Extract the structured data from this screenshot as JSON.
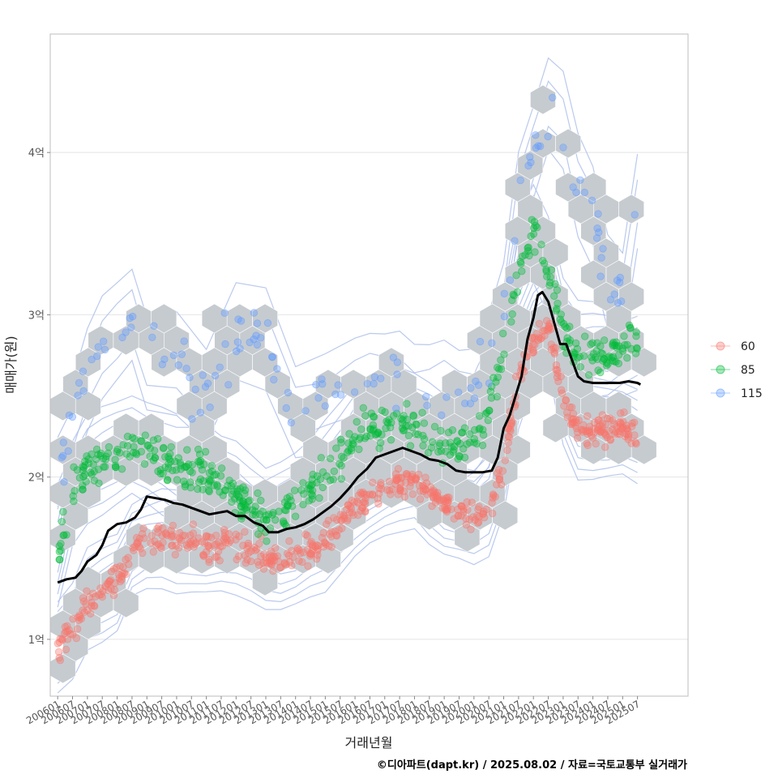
{
  "chart_data": {
    "type": "scatter",
    "xlabel": "거래년월",
    "ylabel": "매매가(원)",
    "caption": "©디아파트(dapt.kr) / 2025.08.02 / 자료=국토교통부 실거래가",
    "x_ticks": [
      "200601",
      "200607",
      "200701",
      "200707",
      "200801",
      "200807",
      "200901",
      "200907",
      "201001",
      "201007",
      "201101",
      "201107",
      "201201",
      "201207",
      "201301",
      "201307",
      "201401",
      "201407",
      "201501",
      "201507",
      "201601",
      "201607",
      "201701",
      "201707",
      "201801",
      "201807",
      "201901",
      "201907",
      "202001",
      "202007",
      "202101",
      "202107",
      "202201",
      "202207",
      "202301",
      "202307",
      "202401",
      "202407",
      "202501",
      "202507"
    ],
    "y_ticks": [
      {
        "value": 1.0,
        "label": "1억"
      },
      {
        "value": 2.0,
        "label": "2억"
      },
      {
        "value": 3.0,
        "label": "3억"
      },
      {
        "value": 4.0,
        "label": "4억"
      }
    ],
    "ylim": [
      0.65,
      4.73
    ],
    "xlim": [
      2005.75,
      2027.2
    ],
    "grid": true,
    "legend_position": "right",
    "series": [
      {
        "name": "60",
        "color": "#F8766D"
      },
      {
        "name": "85",
        "color": "#00BA38"
      },
      {
        "name": "115",
        "color": "#619CFF"
      }
    ],
    "series_centers": [
      {
        "name": "60",
        "points": [
          [
            2006.0,
            0.95
          ],
          [
            2006.5,
            1.05
          ],
          [
            2007.0,
            1.25
          ],
          [
            2007.5,
            1.3
          ],
          [
            2008.0,
            1.35
          ],
          [
            2008.5,
            1.55
          ],
          [
            2009.0,
            1.6
          ],
          [
            2009.5,
            1.62
          ],
          [
            2010.0,
            1.6
          ],
          [
            2010.5,
            1.6
          ],
          [
            2011.0,
            1.58
          ],
          [
            2011.5,
            1.58
          ],
          [
            2012.0,
            1.57
          ],
          [
            2012.5,
            1.55
          ],
          [
            2013.0,
            1.5
          ],
          [
            2013.5,
            1.48
          ],
          [
            2014.0,
            1.5
          ],
          [
            2014.5,
            1.55
          ],
          [
            2015.0,
            1.6
          ],
          [
            2015.5,
            1.72
          ],
          [
            2016.0,
            1.82
          ],
          [
            2016.5,
            1.88
          ],
          [
            2017.0,
            1.92
          ],
          [
            2017.5,
            1.96
          ],
          [
            2018.0,
            2.0
          ],
          [
            2018.5,
            1.9
          ],
          [
            2019.0,
            1.82
          ],
          [
            2019.5,
            1.78
          ],
          [
            2020.0,
            1.75
          ],
          [
            2020.5,
            1.82
          ],
          [
            2021.0,
            2.1
          ],
          [
            2021.5,
            2.6
          ],
          [
            2022.0,
            2.85
          ],
          [
            2022.5,
            2.95
          ],
          [
            2023.0,
            2.5
          ],
          [
            2023.5,
            2.3
          ],
          [
            2024.0,
            2.3
          ],
          [
            2024.5,
            2.3
          ],
          [
            2025.0,
            2.3
          ],
          [
            2025.5,
            2.25
          ]
        ]
      },
      {
        "name": "85",
        "points": [
          [
            2006.0,
            1.5
          ],
          [
            2006.5,
            1.9
          ],
          [
            2007.0,
            2.05
          ],
          [
            2007.5,
            2.1
          ],
          [
            2008.0,
            2.15
          ],
          [
            2008.5,
            2.2
          ],
          [
            2009.0,
            2.15
          ],
          [
            2009.5,
            2.1
          ],
          [
            2010.0,
            2.05
          ],
          [
            2010.5,
            2.05
          ],
          [
            2011.0,
            2.02
          ],
          [
            2011.5,
            1.95
          ],
          [
            2012.0,
            1.9
          ],
          [
            2012.5,
            1.8
          ],
          [
            2013.0,
            1.72
          ],
          [
            2013.5,
            1.78
          ],
          [
            2014.0,
            1.85
          ],
          [
            2014.5,
            1.92
          ],
          [
            2015.0,
            2.02
          ],
          [
            2015.5,
            2.12
          ],
          [
            2016.0,
            2.25
          ],
          [
            2016.5,
            2.3
          ],
          [
            2017.0,
            2.3
          ],
          [
            2017.5,
            2.35
          ],
          [
            2018.0,
            2.3
          ],
          [
            2018.5,
            2.25
          ],
          [
            2019.0,
            2.2
          ],
          [
            2019.5,
            2.2
          ],
          [
            2020.0,
            2.25
          ],
          [
            2020.5,
            2.4
          ],
          [
            2021.0,
            2.8
          ],
          [
            2021.5,
            3.3
          ],
          [
            2022.0,
            3.5
          ],
          [
            2022.5,
            3.3
          ],
          [
            2023.0,
            2.9
          ],
          [
            2023.5,
            2.75
          ],
          [
            2024.0,
            2.75
          ],
          [
            2024.5,
            2.75
          ],
          [
            2025.0,
            2.8
          ],
          [
            2025.5,
            2.85
          ]
        ]
      },
      {
        "name": "115",
        "points": [
          [
            2006.0,
            2.1
          ],
          [
            2006.5,
            2.3
          ],
          [
            2007.0,
            2.6
          ],
          [
            2007.5,
            2.8
          ],
          [
            2008.0,
            2.9
          ],
          [
            2008.5,
            3.0
          ],
          [
            2009.0,
            2.7
          ],
          [
            2010.0,
            2.7
          ],
          [
            2011.0,
            2.5
          ],
          [
            2012.0,
            2.9
          ],
          [
            2013.0,
            2.85
          ],
          [
            2014.0,
            2.4
          ],
          [
            2015.0,
            2.45
          ],
          [
            2016.0,
            2.55
          ],
          [
            2016.5,
            2.6
          ],
          [
            2017.0,
            2.6
          ],
          [
            2017.5,
            2.6
          ],
          [
            2018.0,
            2.5
          ],
          [
            2018.5,
            2.5
          ],
          [
            2019.0,
            2.55
          ],
          [
            2019.5,
            2.5
          ],
          [
            2020.0,
            2.5
          ],
          [
            2020.5,
            2.7
          ],
          [
            2021.0,
            3.0
          ],
          [
            2021.5,
            3.7
          ],
          [
            2022.0,
            4.0
          ],
          [
            2022.5,
            4.3
          ],
          [
            2023.0,
            4.2
          ],
          [
            2023.5,
            3.8
          ],
          [
            2024.0,
            3.6
          ],
          [
            2024.5,
            3.2
          ],
          [
            2025.0,
            3.1
          ],
          [
            2025.5,
            3.7
          ]
        ]
      }
    ],
    "trend_line": [
      [
        2006.0,
        1.35
      ],
      [
        2006.3,
        1.37
      ],
      [
        2006.6,
        1.38
      ],
      [
        2006.8,
        1.42
      ],
      [
        2007.0,
        1.48
      ],
      [
        2007.3,
        1.52
      ],
      [
        2007.5,
        1.58
      ],
      [
        2007.7,
        1.67
      ],
      [
        2008.0,
        1.71
      ],
      [
        2008.3,
        1.72
      ],
      [
        2008.6,
        1.75
      ],
      [
        2008.8,
        1.8
      ],
      [
        2009.0,
        1.88
      ],
      [
        2009.3,
        1.87
      ],
      [
        2009.6,
        1.86
      ],
      [
        2009.9,
        1.84
      ],
      [
        2010.2,
        1.83
      ],
      [
        2010.5,
        1.81
      ],
      [
        2010.8,
        1.79
      ],
      [
        2011.1,
        1.77
      ],
      [
        2011.4,
        1.78
      ],
      [
        2011.7,
        1.79
      ],
      [
        2012.0,
        1.76
      ],
      [
        2012.3,
        1.76
      ],
      [
        2012.6,
        1.72
      ],
      [
        2012.9,
        1.7
      ],
      [
        2013.1,
        1.66
      ],
      [
        2013.4,
        1.66
      ],
      [
        2013.7,
        1.68
      ],
      [
        2014.0,
        1.69
      ],
      [
        2014.3,
        1.71
      ],
      [
        2014.6,
        1.74
      ],
      [
        2014.9,
        1.78
      ],
      [
        2015.2,
        1.82
      ],
      [
        2015.5,
        1.87
      ],
      [
        2015.8,
        1.93
      ],
      [
        2016.1,
        2.0
      ],
      [
        2016.4,
        2.05
      ],
      [
        2016.7,
        2.12
      ],
      [
        2017.0,
        2.14
      ],
      [
        2017.3,
        2.16
      ],
      [
        2017.6,
        2.18
      ],
      [
        2017.9,
        2.16
      ],
      [
        2018.2,
        2.14
      ],
      [
        2018.5,
        2.11
      ],
      [
        2018.8,
        2.1
      ],
      [
        2019.1,
        2.08
      ],
      [
        2019.4,
        2.04
      ],
      [
        2019.7,
        2.03
      ],
      [
        2020.0,
        2.03
      ],
      [
        2020.3,
        2.03
      ],
      [
        2020.6,
        2.04
      ],
      [
        2020.8,
        2.12
      ],
      [
        2021.0,
        2.3
      ],
      [
        2021.2,
        2.38
      ],
      [
        2021.4,
        2.5
      ],
      [
        2021.6,
        2.62
      ],
      [
        2021.8,
        2.85
      ],
      [
        2022.0,
        2.98
      ],
      [
        2022.15,
        3.12
      ],
      [
        2022.3,
        3.14
      ],
      [
        2022.5,
        3.08
      ],
      [
        2022.7,
        2.95
      ],
      [
        2022.9,
        2.82
      ],
      [
        2023.1,
        2.82
      ],
      [
        2023.3,
        2.72
      ],
      [
        2023.5,
        2.62
      ],
      [
        2023.7,
        2.59
      ],
      [
        2024.0,
        2.58
      ],
      [
        2024.3,
        2.58
      ],
      [
        2024.6,
        2.58
      ],
      [
        2024.9,
        2.58
      ],
      [
        2025.2,
        2.59
      ],
      [
        2025.5,
        2.58
      ],
      [
        2025.6,
        2.57
      ]
    ]
  }
}
